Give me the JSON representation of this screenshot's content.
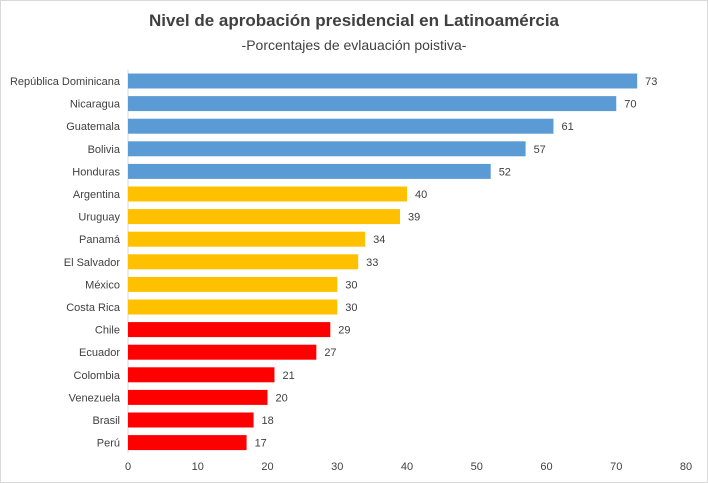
{
  "chart_data": {
    "type": "bar",
    "orientation": "horizontal",
    "title": "Nivel de aprobación presidencial en Latinoamércia",
    "subtitle": "-Porcentajes de evlauación poistiva-",
    "xlabel": "",
    "ylabel": "",
    "xlim": [
      0,
      80
    ],
    "xticks": [
      0,
      10,
      20,
      30,
      40,
      50,
      60,
      70,
      80
    ],
    "grid": false,
    "legend": "none",
    "colors": {
      "high": "#5b9bd5",
      "mid": "#ffc000",
      "low": "#ff0000"
    },
    "bars": [
      {
        "category": "República Dominicana",
        "value": 73,
        "group": "high"
      },
      {
        "category": "Nicaragua",
        "value": 70,
        "group": "high"
      },
      {
        "category": "Guatemala",
        "value": 61,
        "group": "high"
      },
      {
        "category": "Bolivia",
        "value": 57,
        "group": "high"
      },
      {
        "category": "Honduras",
        "value": 52,
        "group": "high"
      },
      {
        "category": "Argentina",
        "value": 40,
        "group": "mid"
      },
      {
        "category": "Uruguay",
        "value": 39,
        "group": "mid"
      },
      {
        "category": "Panamá",
        "value": 34,
        "group": "mid"
      },
      {
        "category": "El Salvador",
        "value": 33,
        "group": "mid"
      },
      {
        "category": "México",
        "value": 30,
        "group": "mid"
      },
      {
        "category": "Costa Rica",
        "value": 30,
        "group": "mid"
      },
      {
        "category": "Chile",
        "value": 29,
        "group": "low"
      },
      {
        "category": "Ecuador",
        "value": 27,
        "group": "low"
      },
      {
        "category": "Colombia",
        "value": 21,
        "group": "low"
      },
      {
        "category": "Venezuela",
        "value": 20,
        "group": "low"
      },
      {
        "category": "Brasil",
        "value": 18,
        "group": "low"
      },
      {
        "category": "Perú",
        "value": 17,
        "group": "low"
      }
    ]
  }
}
